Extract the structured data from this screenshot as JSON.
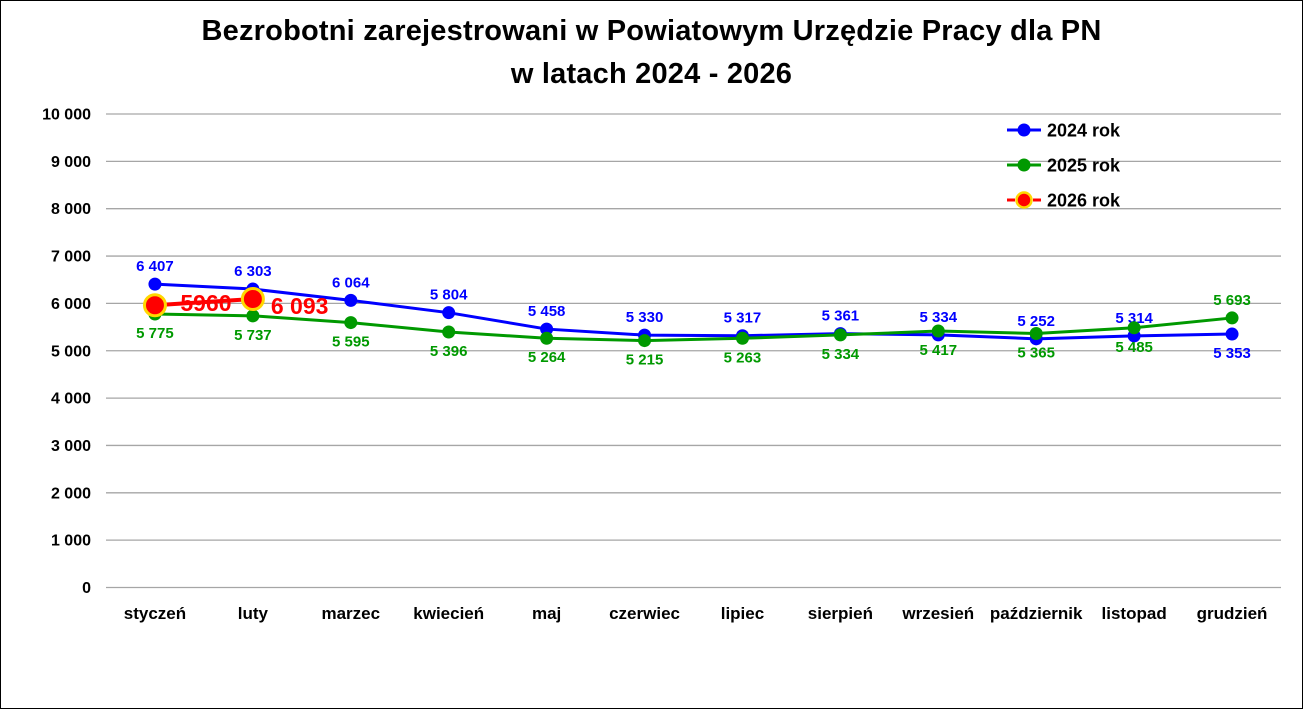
{
  "title": {
    "line1": "Bezrobotni zarejestrowani w Powiatowym Urzędzie Pracy dla PN",
    "line2": "w latach 2024 - 2026"
  },
  "chart_data": {
    "type": "line",
    "title": "Bezrobotni zarejestrowani w Powiatowym Urzędzie Pracy dla PN w latach 2024 - 2026",
    "categories": [
      "styczeń",
      "luty",
      "marzec",
      "kwiecień",
      "maj",
      "czerwiec",
      "lipiec",
      "sierpień",
      "wrzesień",
      "październik",
      "listopad",
      "grudzień"
    ],
    "series": [
      {
        "name": "2024 rok",
        "color": "#0000FF",
        "marker": "circle",
        "line_style": "solid",
        "values": [
          6407,
          6303,
          6064,
          5804,
          5458,
          5330,
          5317,
          5361,
          5334,
          5252,
          5314,
          5353
        ],
        "labels": [
          "6 407",
          "6 303",
          "6 064",
          "5 804",
          "5 458",
          "5 330",
          "5 317",
          "5 361",
          "5 334",
          "5 252",
          "5 314",
          "5 353"
        ],
        "label_positions": [
          "above",
          "above",
          "above",
          "above",
          "above",
          "above",
          "above",
          "above",
          "above",
          "above",
          "above",
          "below"
        ]
      },
      {
        "name": "2025 rok",
        "color": "#009900",
        "marker": "circle",
        "line_style": "solid",
        "values": [
          5775,
          5737,
          5595,
          5396,
          5264,
          5215,
          5263,
          5334,
          5417,
          5365,
          5485,
          5693
        ],
        "labels": [
          "5 775",
          "5 737",
          "5 595",
          "5 396",
          "5 264",
          "5 215",
          "5 263",
          "5 334",
          "5 417",
          "5 365",
          "5 485",
          "5 693"
        ],
        "label_positions": [
          "below",
          "below",
          "below",
          "below",
          "below",
          "below",
          "below",
          "below",
          "below",
          "below",
          "below",
          "above"
        ]
      },
      {
        "name": "2026 rok",
        "color": "#FF0000",
        "marker": "circle",
        "marker_ring": "#FFD700",
        "line_style": "dashed",
        "label_style": "large-inline",
        "values": [
          5960,
          6093,
          null,
          null,
          null,
          null,
          null,
          null,
          null,
          null,
          null,
          null
        ],
        "labels": [
          "5960",
          "6 093"
        ]
      }
    ],
    "ylim": [
      0,
      10000
    ],
    "yticks": {
      "values": [
        0,
        1000,
        2000,
        3000,
        4000,
        5000,
        6000,
        7000,
        8000,
        9000,
        10000
      ],
      "labels": [
        "0",
        "1 000",
        "2 000",
        "3 000",
        "4 000",
        "5 000",
        "6 000",
        "7 000",
        "8 000",
        "9 000",
        "10 000"
      ]
    },
    "grid": "horizontal",
    "legend": {
      "position": "top-right"
    }
  },
  "colors": {
    "grid": "#A6A6A6",
    "axis_text": "#000000",
    "background": "#FFFFFF",
    "border": "#000000"
  }
}
